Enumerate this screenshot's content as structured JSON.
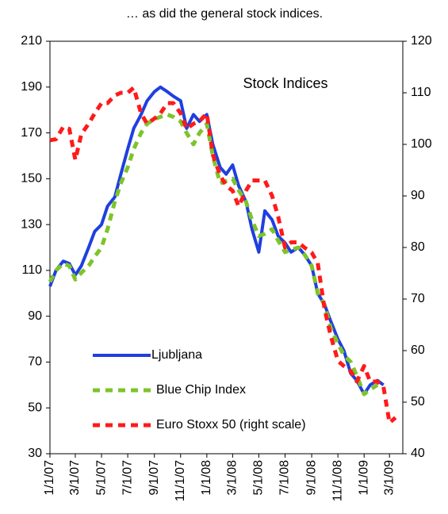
{
  "chart_data": {
    "type": "line",
    "title": "… as did the general stock indices.",
    "annotation": "Stock Indices",
    "x": [
      "2007-01-01",
      "2007-01-15",
      "2007-02-01",
      "2007-02-15",
      "2007-03-01",
      "2007-03-15",
      "2007-04-01",
      "2007-04-15",
      "2007-05-01",
      "2007-05-15",
      "2007-06-01",
      "2007-06-15",
      "2007-07-01",
      "2007-07-15",
      "2007-08-01",
      "2007-08-15",
      "2007-09-01",
      "2007-09-15",
      "2007-10-01",
      "2007-10-15",
      "2007-11-01",
      "2007-11-15",
      "2007-12-01",
      "2007-12-15",
      "2008-01-01",
      "2008-01-15",
      "2008-02-01",
      "2008-02-15",
      "2008-03-01",
      "2008-03-15",
      "2008-04-01",
      "2008-04-15",
      "2008-05-01",
      "2008-05-15",
      "2008-06-01",
      "2008-06-15",
      "2008-07-01",
      "2008-07-15",
      "2008-08-01",
      "2008-08-15",
      "2008-09-01",
      "2008-09-15",
      "2008-10-01",
      "2008-10-15",
      "2008-11-01",
      "2008-11-15",
      "2008-12-01",
      "2008-12-15",
      "2009-01-01",
      "2009-01-15",
      "2009-02-01",
      "2009-02-15",
      "2009-03-01",
      "2009-03-15"
    ],
    "series": [
      {
        "name": "Ljubljana",
        "color": "#1f3fe0",
        "dash": false,
        "values": [
          103,
          110,
          114,
          113,
          108,
          112,
          120,
          127,
          130,
          138,
          142,
          152,
          163,
          172,
          178,
          184,
          188,
          190,
          188,
          186,
          184,
          172,
          178,
          175,
          178,
          165,
          155,
          152,
          156,
          147,
          140,
          128,
          118,
          136,
          132,
          125,
          122,
          118,
          120,
          117,
          112,
          100,
          95,
          88,
          80,
          75,
          65,
          62,
          56,
          60,
          62,
          60,
          null,
          null
        ]
      },
      {
        "name": "Blue Chip Index",
        "color": "#7dc42a",
        "dash": true,
        "values": [
          105,
          110,
          113,
          112,
          106,
          109,
          112,
          116,
          120,
          128,
          140,
          148,
          155,
          163,
          170,
          174,
          176,
          177,
          178,
          177,
          175,
          170,
          165,
          170,
          174,
          160,
          148,
          149,
          150,
          145,
          140,
          132,
          125,
          126,
          128,
          123,
          118,
          119,
          120,
          117,
          112,
          100,
          95,
          85,
          78,
          73,
          70,
          64,
          56,
          58,
          60,
          59,
          null,
          null
        ]
      },
      {
        "name": "Euro Stoxx 50 (right scale)",
        "color": "#ff1a1a",
        "dash": true,
        "axis": "y2",
        "values": [
          100.8,
          101,
          103.4,
          103,
          97,
          102,
          104,
          106,
          108,
          108,
          109.5,
          110,
          110,
          111,
          106,
          104,
          105,
          106,
          108,
          108,
          106,
          103,
          104,
          104.5,
          106,
          98,
          94,
          92,
          91,
          88,
          91,
          93,
          93,
          93,
          90,
          86,
          80,
          81,
          81,
          80,
          79,
          77,
          68,
          63,
          58,
          57,
          56,
          54,
          57,
          54,
          54,
          53,
          46,
          47
        ]
      }
    ],
    "xlim": [
      "2007-01-01",
      "2009-04-01"
    ],
    "xticks": [
      {
        "value": "2007-01-01",
        "label": "1/1/07"
      },
      {
        "value": "2007-03-01",
        "label": "3/1/07"
      },
      {
        "value": "2007-05-01",
        "label": "5/1/07"
      },
      {
        "value": "2007-07-01",
        "label": "7/1/07"
      },
      {
        "value": "2007-09-01",
        "label": "9/1/07"
      },
      {
        "value": "2007-11-01",
        "label": "11/1/07"
      },
      {
        "value": "2008-01-01",
        "label": "1/1/08"
      },
      {
        "value": "2008-03-01",
        "label": "3/1/08"
      },
      {
        "value": "2008-05-01",
        "label": "5/1/08"
      },
      {
        "value": "2008-07-01",
        "label": "7/1/08"
      },
      {
        "value": "2008-09-01",
        "label": "9/1/08"
      },
      {
        "value": "2008-11-01",
        "label": "11/1/08"
      },
      {
        "value": "2009-01-01",
        "label": "1/1/09"
      },
      {
        "value": "2009-03-01",
        "label": "3/1/09"
      }
    ],
    "ylim": [
      30,
      210
    ],
    "yticks": [
      30,
      50,
      70,
      90,
      110,
      130,
      150,
      170,
      190,
      210
    ],
    "y2lim": [
      40,
      120
    ],
    "y2ticks": [
      40,
      50,
      60,
      70,
      80,
      90,
      100,
      110,
      120
    ],
    "grid": false,
    "legend": "lower left"
  }
}
